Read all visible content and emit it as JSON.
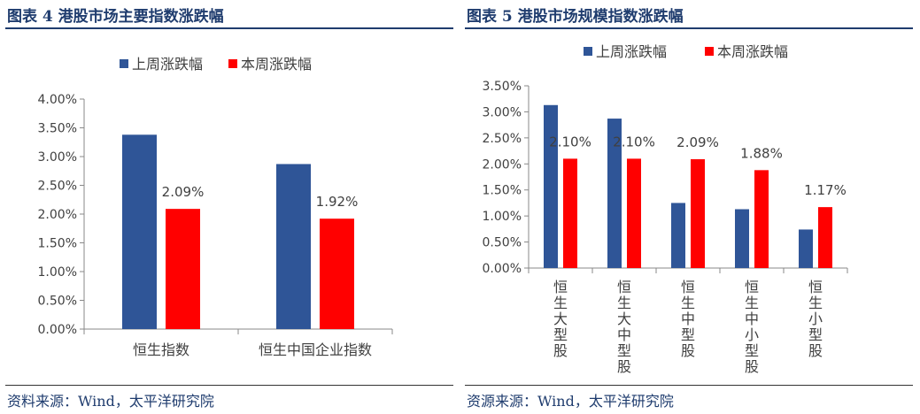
{
  "charts": [
    {
      "fig_title": "图表 4 港股市场主要指数涨跌幅",
      "source": "资料来源：Wind，太平洋研究院",
      "colors": {
        "series0": "#2f5597",
        "series1": "#ff0000",
        "axis": "#888888",
        "text": "#404040"
      },
      "legend_position": "top-center"
    },
    {
      "fig_title": "图表 5 港股市场规模指数涨跌幅",
      "source": "资源来源：Wind，太平洋研究院",
      "colors": {
        "series0": "#2f5597",
        "series1": "#ff0000",
        "axis": "#888888",
        "text": "#404040"
      },
      "legend_position": "top-center"
    }
  ],
  "chart_data": [
    {
      "type": "bar",
      "title": "",
      "categories": [
        "恒生指数",
        "恒生中国企业指数"
      ],
      "series": [
        {
          "name": "上周涨跌幅",
          "values": [
            3.38,
            2.87
          ]
        },
        {
          "name": "本周涨跌幅",
          "values": [
            2.09,
            1.92
          ],
          "data_labels": [
            "2.09%",
            "1.92%"
          ]
        }
      ],
      "xlabel": "",
      "ylabel": "",
      "ylim": [
        0,
        4.0
      ],
      "yticks": [
        "0.00%",
        "0.50%",
        "1.00%",
        "1.50%",
        "2.00%",
        "2.50%",
        "3.00%",
        "3.50%",
        "4.00%"
      ],
      "grid": false,
      "legend_position": "top-center"
    },
    {
      "type": "bar",
      "title": "",
      "categories": [
        "恒生大型股",
        "恒生大中型股",
        "恒生中型股",
        "恒生中小型股",
        "恒生小型股"
      ],
      "series": [
        {
          "name": "上周涨跌幅",
          "values": [
            3.13,
            2.87,
            1.25,
            1.13,
            0.74
          ]
        },
        {
          "name": "本周涨跌幅",
          "values": [
            2.1,
            2.1,
            2.09,
            1.88,
            1.17
          ],
          "data_labels": [
            "2.10%",
            "2.10%",
            "2.09%",
            "1.88%",
            "1.17%"
          ]
        }
      ],
      "xlabel": "",
      "ylabel": "",
      "ylim": [
        0,
        3.5
      ],
      "yticks": [
        "0.00%",
        "0.50%",
        "1.00%",
        "1.50%",
        "2.00%",
        "2.50%",
        "3.00%",
        "3.50%"
      ],
      "grid": false,
      "legend_position": "top-center"
    }
  ]
}
